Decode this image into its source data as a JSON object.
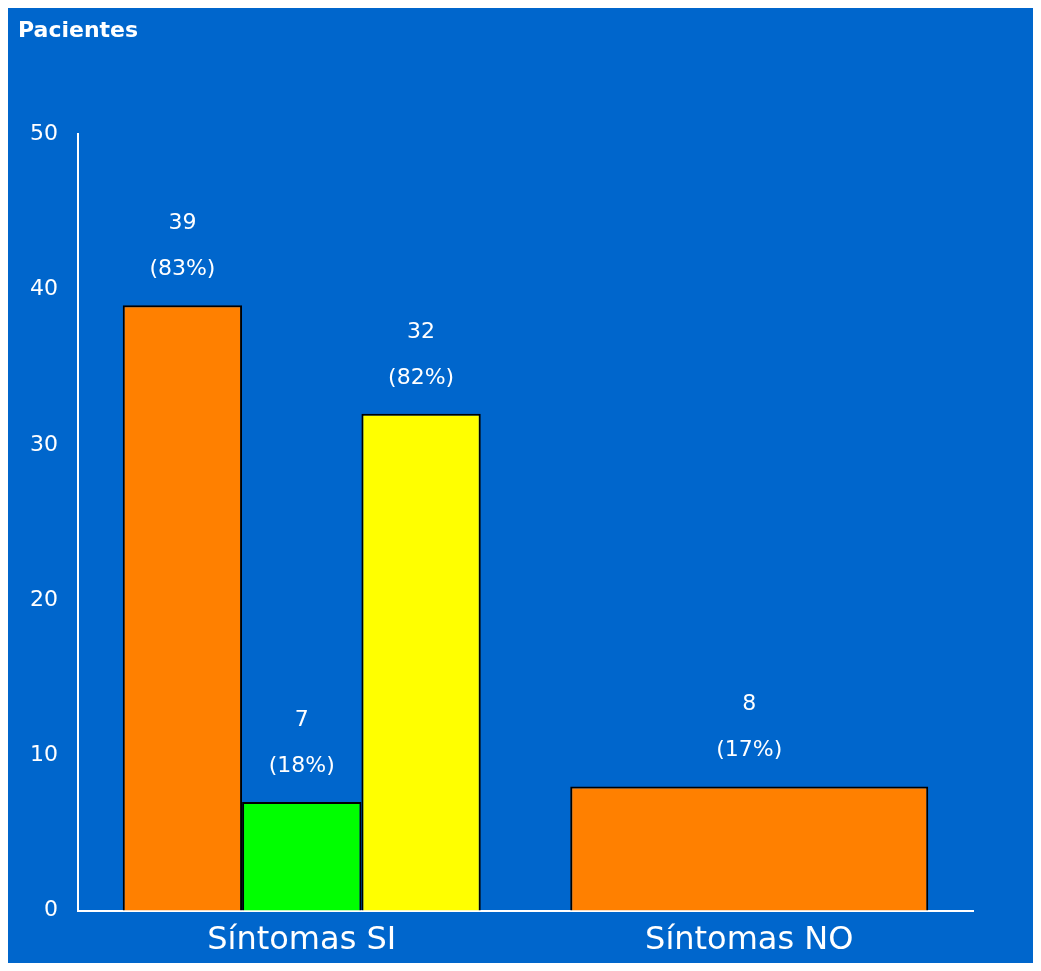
{
  "chart_data": {
    "type": "bar",
    "ylabel": "Pacientes",
    "categories": [
      "Síntomas SI",
      "Síntomas NO"
    ],
    "series": [
      {
        "color": "#ff8000",
        "values": [
          39,
          8
        ],
        "value_labels": [
          "39 (83%)",
          "8 (17%)"
        ]
      },
      {
        "color": "#00ff00",
        "values": [
          7,
          null
        ],
        "value_labels": [
          "7 (18%)",
          null
        ]
      },
      {
        "color": "#ffff00",
        "values": [
          32,
          null
        ],
        "value_labels": [
          "32 (82%)",
          null
        ]
      }
    ],
    "ylim": [
      0,
      50
    ],
    "yticks": [
      0,
      10,
      20,
      30,
      40,
      50
    ],
    "grid": false,
    "legend": false
  }
}
